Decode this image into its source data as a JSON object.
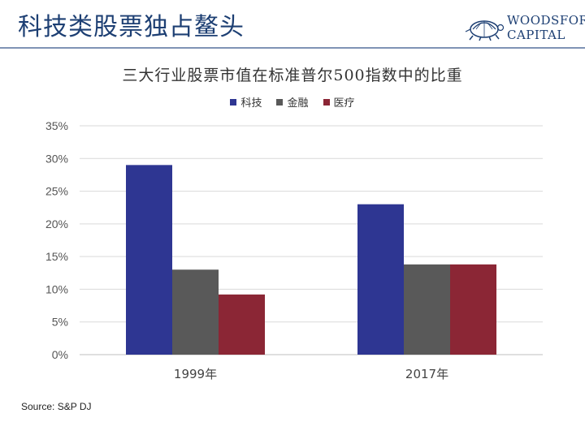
{
  "header": {
    "title": "科技类股票独占鳌头",
    "logo_line1": "WOODSFORD",
    "logo_line2": "CAPITAL"
  },
  "chart_data": {
    "type": "bar",
    "title": "三大行业股票市值在标准普尔500指数中的比重",
    "categories": [
      "1999年",
      "2017年"
    ],
    "series": [
      {
        "name": "科技",
        "color": "#2e3692",
        "values": [
          29,
          23
        ]
      },
      {
        "name": "金融",
        "color": "#595959",
        "values": [
          13,
          13.8
        ]
      },
      {
        "name": "医疗",
        "color": "#8b2635",
        "values": [
          9.2,
          13.8
        ]
      }
    ],
    "ylim": [
      0,
      35
    ],
    "yticks": [
      "0%",
      "5%",
      "10%",
      "15%",
      "20%",
      "25%",
      "30%",
      "35%"
    ],
    "grid": true,
    "legend": "top-center",
    "xlabel": "",
    "ylabel": ""
  },
  "footer": {
    "source": "Source: S&P DJ"
  }
}
